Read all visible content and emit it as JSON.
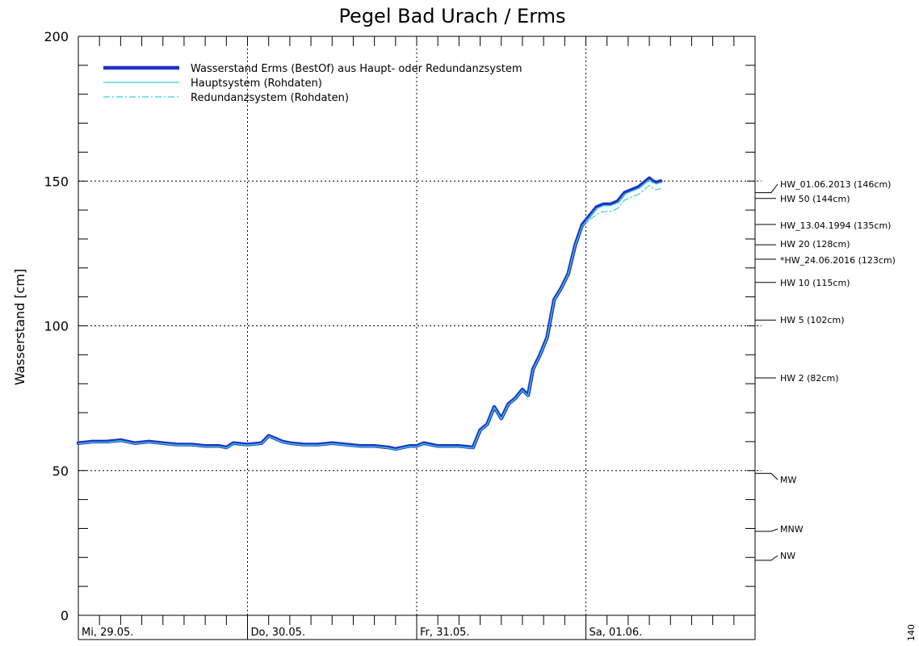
{
  "chart_data": {
    "type": "line",
    "title": "Pegel Bad Urach / Erms",
    "xlabel": "",
    "ylabel": "Wasserstand [cm]",
    "ylim": [
      0,
      200
    ],
    "yticks": [
      0,
      50,
      100,
      150,
      200
    ],
    "xlim": [
      0,
      96
    ],
    "day_ticks": [
      {
        "x": 0,
        "label": "Mi, 29.05."
      },
      {
        "x": 24,
        "label": "Do, 30.05."
      },
      {
        "x": 48,
        "label": "Fr, 31.05."
      },
      {
        "x": 72,
        "label": "Sa, 01.06."
      }
    ],
    "grid": true,
    "legend_position": "top-left",
    "series": [
      {
        "name": "Wasserstand Erms  (BestOf)  aus Haupt- oder Redundanzsystem",
        "color": "#1e32c8",
        "style": "thick",
        "x": [
          0,
          2,
          4,
          6,
          8,
          10,
          12,
          14,
          16,
          18,
          20,
          21,
          22,
          24,
          26,
          27,
          28,
          29,
          30,
          32,
          34,
          36,
          38,
          40,
          42,
          44,
          45,
          46,
          47,
          48,
          49,
          50,
          51,
          52,
          54,
          56,
          56.5,
          57,
          58,
          59,
          60,
          61,
          62,
          63,
          63.8,
          64.5,
          65.5,
          66.5,
          67.5,
          68.5,
          69.5,
          70.5,
          71.5,
          72.5,
          73.5,
          74.5,
          75.5,
          76.5,
          77.5,
          78.5,
          79.5,
          80.5,
          81,
          81.5,
          82,
          82.6
        ],
        "y": [
          59.5,
          60,
          60,
          60.5,
          59.5,
          60,
          59.5,
          59,
          59,
          58.5,
          58.5,
          58,
          59.5,
          59,
          59.5,
          62,
          61,
          60,
          59.5,
          59,
          59,
          59.5,
          59,
          58.5,
          58.5,
          58,
          57.5,
          58,
          58.5,
          58.5,
          59.5,
          59,
          58.5,
          58.5,
          58.5,
          58,
          61,
          64,
          66,
          72,
          68,
          73,
          75,
          78,
          76,
          85,
          90,
          96,
          109,
          113,
          118,
          128,
          135,
          138,
          141,
          142,
          142,
          143,
          146,
          147,
          148,
          150,
          151,
          150,
          149.5,
          150
        ]
      },
      {
        "name": "Hauptsystem (Rohdaten)",
        "color": "#40d0d0",
        "style": "thin",
        "x": [
          0,
          2,
          4,
          6,
          8,
          10,
          12,
          14,
          16,
          18,
          20,
          21,
          22,
          24,
          26,
          27,
          28,
          29,
          30,
          32,
          34,
          36,
          38,
          40,
          42,
          44,
          45,
          46,
          47,
          48,
          49,
          50,
          51,
          52,
          54,
          56,
          56.5,
          57,
          58,
          59,
          60,
          61,
          62,
          63,
          63.8,
          64.5,
          65.5,
          66.5,
          67.5,
          68.5,
          69.5,
          70.5,
          71.5,
          72.5,
          73.5,
          74.5,
          75.5,
          76.5,
          77.5,
          78.5,
          79.5,
          80.5,
          81,
          81.5,
          82,
          82.6
        ],
        "y": [
          59.3,
          59.8,
          59.8,
          60.3,
          59.3,
          59.8,
          59.3,
          58.8,
          58.8,
          58.3,
          58.3,
          57.8,
          59.3,
          58.8,
          59.3,
          61.8,
          60.8,
          59.8,
          59.3,
          58.8,
          58.8,
          59.3,
          58.8,
          58.3,
          58.3,
          57.8,
          57.3,
          57.8,
          58.3,
          58.3,
          59.3,
          58.8,
          58.3,
          58.3,
          58.3,
          57.8,
          60.8,
          63.8,
          65.8,
          71.8,
          67.8,
          72.8,
          74.8,
          77.8,
          75.8,
          84.8,
          89.8,
          95.8,
          108.8,
          112.8,
          117.8,
          127.8,
          134.5,
          137.5,
          140.5,
          141.5,
          141.5,
          142.5,
          145.5,
          146.5,
          147.5,
          149.5,
          150.5,
          149.5,
          149,
          149.5
        ]
      },
      {
        "name": "Redundanzsystem (Rohdaten)",
        "color": "#40d0d0",
        "style": "dashdot",
        "x": [
          0,
          2,
          4,
          6,
          8,
          10,
          12,
          14,
          16,
          18,
          20,
          21,
          22,
          24,
          26,
          27,
          28,
          29,
          30,
          32,
          34,
          36,
          38,
          40,
          42,
          44,
          45,
          46,
          47,
          48,
          49,
          50,
          51,
          52,
          54,
          56,
          56.5,
          57,
          58,
          59,
          60,
          61,
          62,
          63,
          63.8,
          64.5,
          65.5,
          66.5,
          67.5,
          68.5,
          69.5,
          70.5,
          71.5,
          72.5,
          73.5,
          74.5,
          75.5,
          76.5,
          77.5,
          78.5,
          79.5,
          80.5,
          81,
          81.5,
          82,
          82.6
        ],
        "y": [
          59.2,
          59.7,
          59.7,
          60.2,
          59.2,
          59.7,
          59.2,
          58.7,
          58.7,
          58.2,
          58.2,
          57.7,
          59.2,
          58.7,
          59.2,
          61.7,
          60.7,
          59.7,
          59.2,
          58.7,
          58.7,
          59.2,
          58.7,
          58.2,
          58.2,
          57.7,
          57.2,
          57.7,
          58.2,
          58.2,
          59.2,
          58.7,
          58.2,
          58.2,
          58.2,
          57.7,
          60.7,
          63.7,
          65.7,
          71.7,
          67.7,
          72.7,
          74.7,
          77.7,
          75.7,
          84.7,
          89.7,
          95.7,
          108.7,
          112.5,
          117.5,
          127.5,
          134,
          136.5,
          138.5,
          139.5,
          139.5,
          140.5,
          143.5,
          144.5,
          145.5,
          147.5,
          148.5,
          147.5,
          147,
          147.5
        ]
      }
    ],
    "reference_levels": [
      {
        "label": "HW_01.06.2013 (146cm)",
        "value": 146
      },
      {
        "label": "HW 50 (144cm)",
        "value": 144
      },
      {
        "label": "HW_13.04.1994 (135cm)",
        "value": 135
      },
      {
        "label": "HW 20 (128cm)",
        "value": 128
      },
      {
        "label": "*HW_24.06.2016 (123cm)",
        "value": 123
      },
      {
        "label": "HW 10 (115cm)",
        "value": 115
      },
      {
        "label": "HW 5 (102cm)",
        "value": 102
      },
      {
        "label": "HW 2 (82cm)",
        "value": 82
      },
      {
        "label": "MW",
        "value": 49
      },
      {
        "label": "MNW",
        "value": 29
      },
      {
        "label": "NW",
        "value": 19
      }
    ],
    "side_text": "140"
  }
}
